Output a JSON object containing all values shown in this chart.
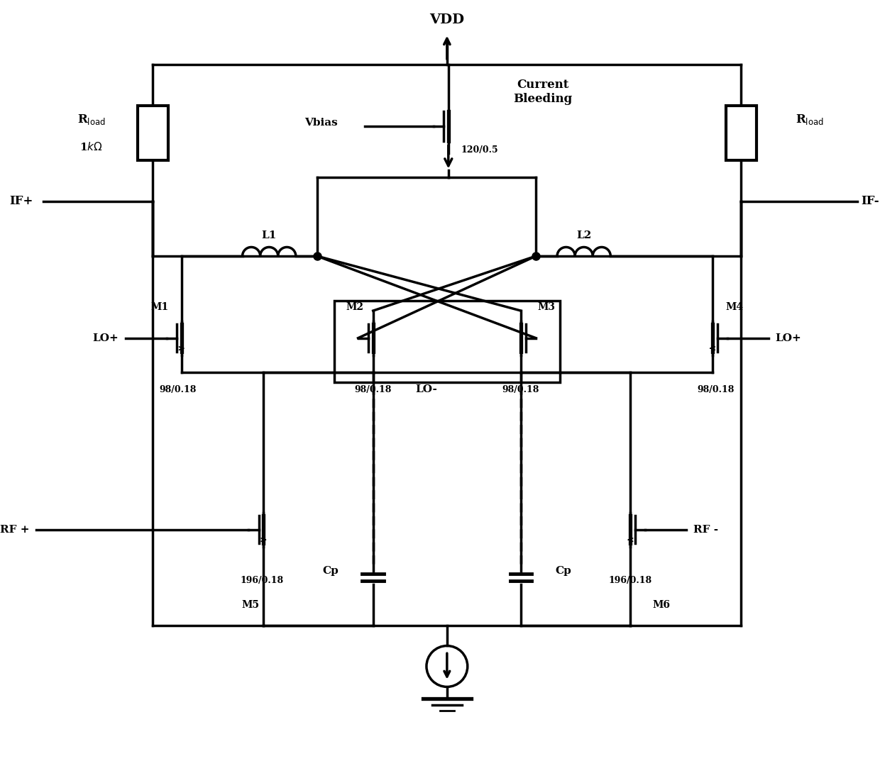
{
  "bg_color": "#ffffff",
  "lw": 2.5,
  "lw_thick": 3.8,
  "lw_thin": 1.8,
  "labels": {
    "vdd": "VDD",
    "if_plus": "IF+",
    "if_minus": "IF-",
    "lo_plus": "LO+",
    "lo_minus": "LO-",
    "rf_plus": "RF +",
    "rf_minus": "RF -",
    "vbias": "Vbias",
    "current_bleeding": "Current\nBleeding",
    "rload": "R$_{\\rm load}$",
    "rkohm": "1$k\\Omega$",
    "l1": "L1",
    "l2": "L2",
    "m1": "M1",
    "m2": "M2",
    "m3": "M3",
    "m4": "M4",
    "m5": "M5",
    "m6": "M6",
    "size_sw": "98/0.18",
    "size_rf": "196/0.18",
    "size_vb": "120/0.5",
    "cp": "Cp"
  }
}
